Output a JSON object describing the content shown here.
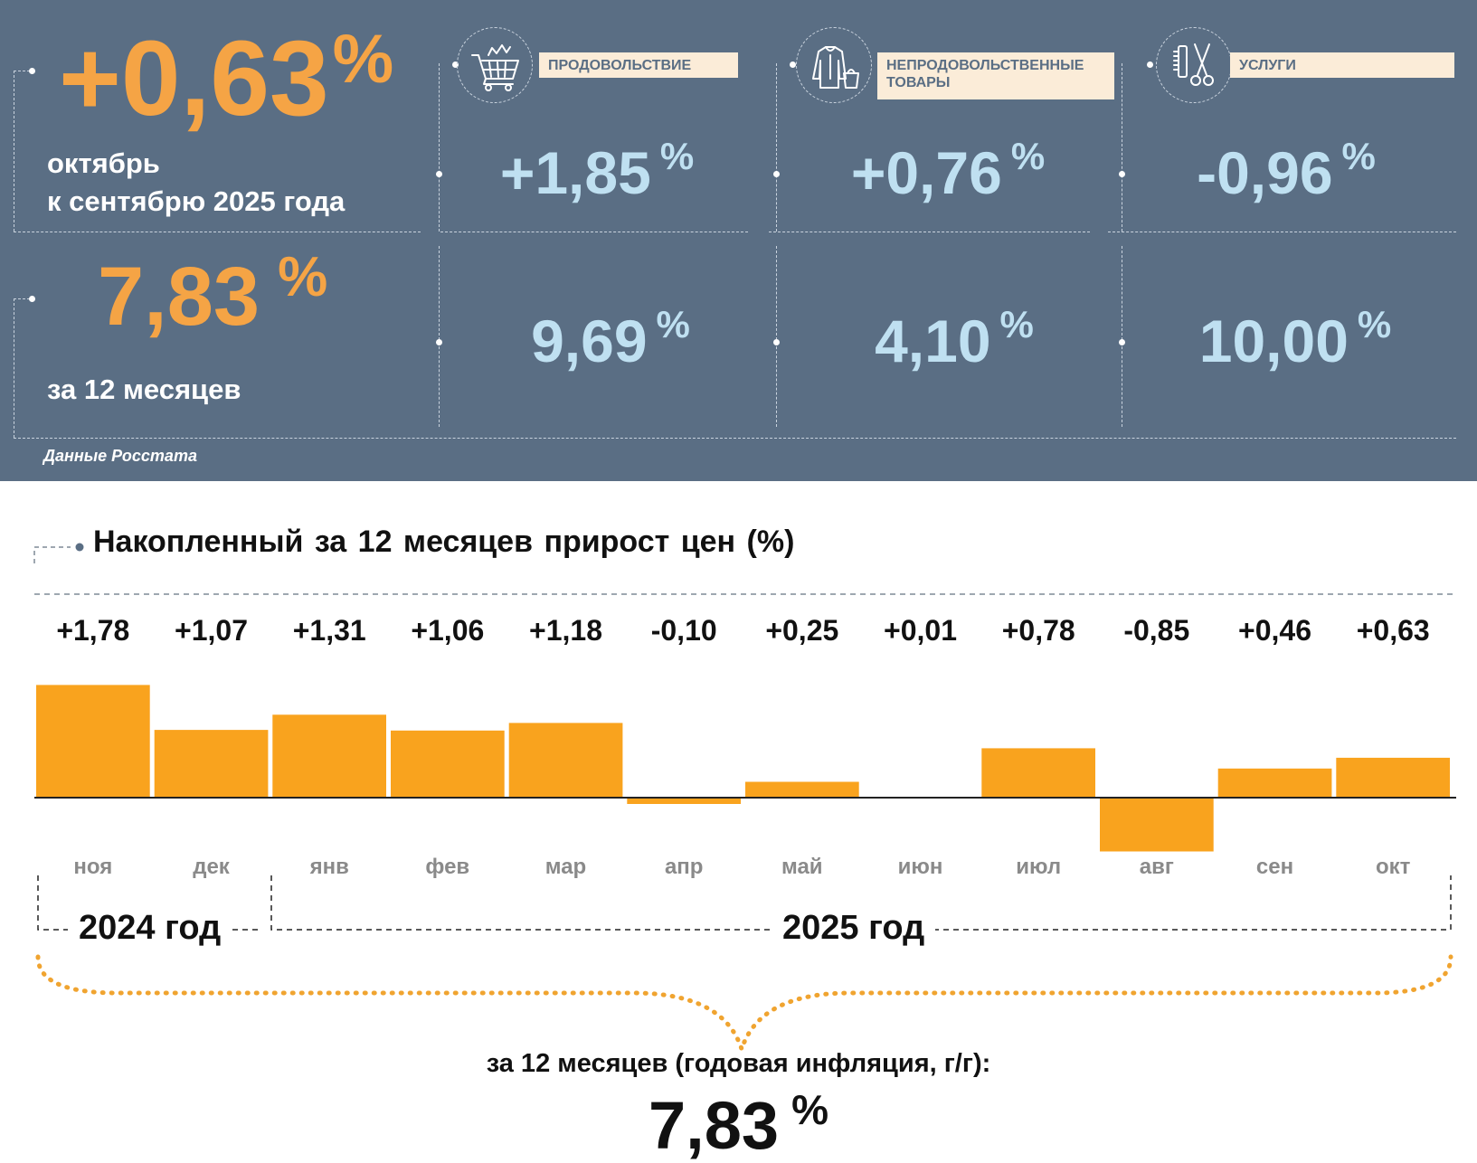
{
  "top": {
    "monthly": {
      "value": "+0,63",
      "unit": "%",
      "line1": "октябрь",
      "line2": "к сентябрю 2025 года"
    },
    "annual": {
      "value": "7,83",
      "unit": "%",
      "label": "за 12 месяцев"
    },
    "source": "Данные Росстата",
    "categories": [
      {
        "label": "ПРОДОВОЛЬСТВИЕ",
        "icon": "shopping-cart-icon",
        "monthly": "+1,85",
        "annual": "9,69",
        "unit": "%"
      },
      {
        "label": "НЕПРОДОВОЛЬСТВЕННЫЕ ТОВАРЫ",
        "icon": "clothes-bag-icon",
        "monthly": "+0,76",
        "annual": "4,10",
        "unit": "%"
      },
      {
        "label": "УСЛУГИ",
        "icon": "comb-scissors-icon",
        "monthly": "-0,96",
        "annual": "10,00",
        "unit": "%"
      }
    ],
    "colors": {
      "panel": "#5a6e84",
      "orange": "#f5a445",
      "blue": "#bfe0f1",
      "label_bg": "#fbecd8"
    }
  },
  "chart_data": {
    "type": "bar",
    "title": "Накопленный за 12 месяцев прирост цен (%)",
    "categories": [
      "ноя",
      "дек",
      "янв",
      "фев",
      "мар",
      "апр",
      "май",
      "июн",
      "июл",
      "авг",
      "сен",
      "окт"
    ],
    "values": [
      1.78,
      1.07,
      1.31,
      1.06,
      1.18,
      -0.1,
      0.25,
      0.01,
      0.78,
      -0.85,
      0.46,
      0.63
    ],
    "value_labels": [
      "+1,78",
      "+1,07",
      "+1,31",
      "+1,06",
      "+1,18",
      "-0,10",
      "+0,25",
      "+0,01",
      "+0,78",
      "-0,85",
      "+0,46",
      "+0,63"
    ],
    "years": [
      {
        "label": "2024 год",
        "months": [
          "ноя",
          "дек"
        ]
      },
      {
        "label": "2025 год",
        "months": [
          "янв",
          "фев",
          "мар",
          "апр",
          "май",
          "июн",
          "июл",
          "авг",
          "сен",
          "окт"
        ]
      }
    ],
    "ylim": [
      -0.9,
      1.8
    ],
    "bar_color": "#f9a31e",
    "summary_label": "за 12 месяцев (годовая инфляция, г/г):",
    "summary_value": "7,83",
    "summary_unit": "%"
  }
}
